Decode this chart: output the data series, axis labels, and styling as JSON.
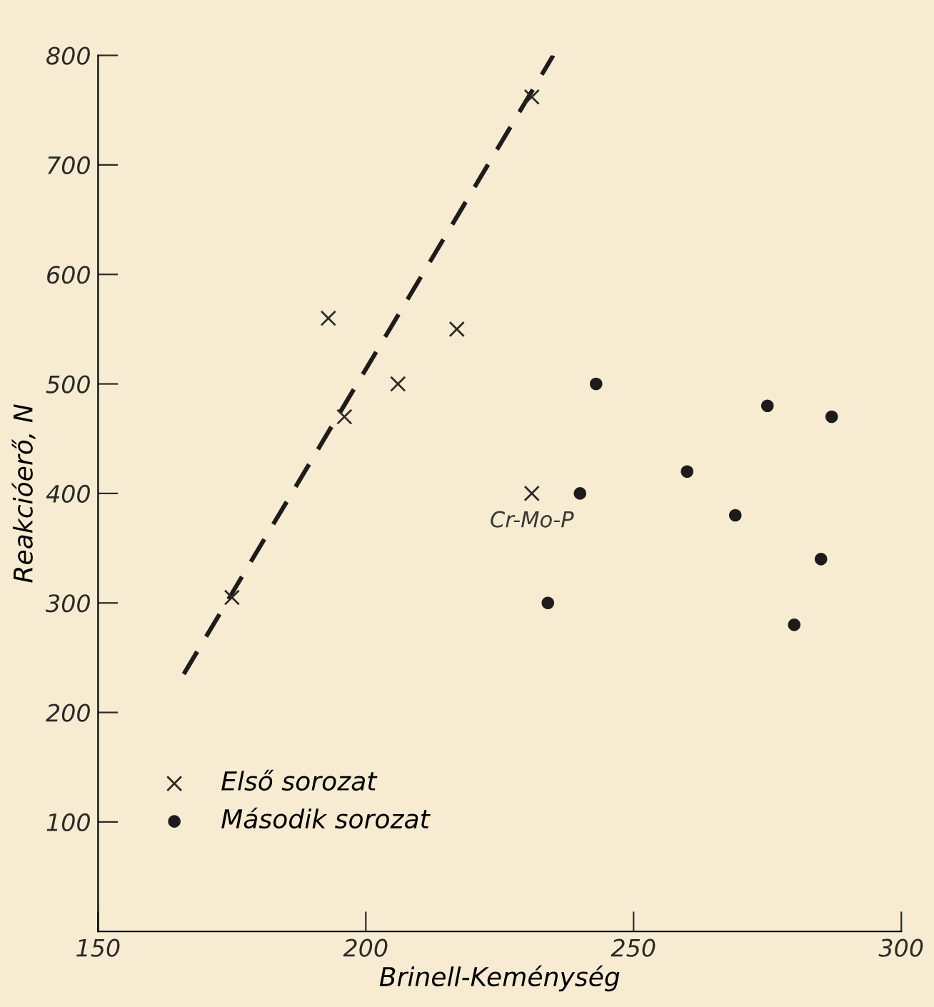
{
  "chart_data": {
    "type": "scatter",
    "xlabel": "Brinell-Keménység",
    "ylabel": "Reakcióerő, N",
    "xlim": [
      150,
      300
    ],
    "xticks": [
      150,
      200,
      250,
      300
    ],
    "ylim": [
      0,
      800
    ],
    "yticks": [
      100,
      200,
      300,
      400,
      500,
      600,
      700,
      800
    ],
    "grid": false,
    "legend": "bottom left",
    "series": [
      {
        "name": "Első sorozat",
        "color": "#2b2a28",
        "marker": "cross",
        "x": [
          175,
          193,
          196,
          206,
          217,
          231,
          231
        ],
        "values": [
          305,
          560,
          470,
          500,
          550,
          762,
          400
        ]
      },
      {
        "name": "Második sorozat",
        "color": "#1e1c1a",
        "marker": "circle",
        "x": [
          243,
          275,
          287,
          260,
          240,
          269,
          285,
          234,
          280
        ],
        "values": [
          500,
          480,
          470,
          420,
          400,
          380,
          340,
          300,
          280
        ]
      },
      {
        "type": "line",
        "color": "#1e1c1a",
        "line_style": "dashed",
        "marker": "none",
        "x": [
          166,
          235
        ],
        "values": [
          235,
          800
        ]
      }
    ],
    "annotations": [
      {
        "text": "Cr-Mo-P",
        "x": 231,
        "y": 400
      }
    ]
  }
}
